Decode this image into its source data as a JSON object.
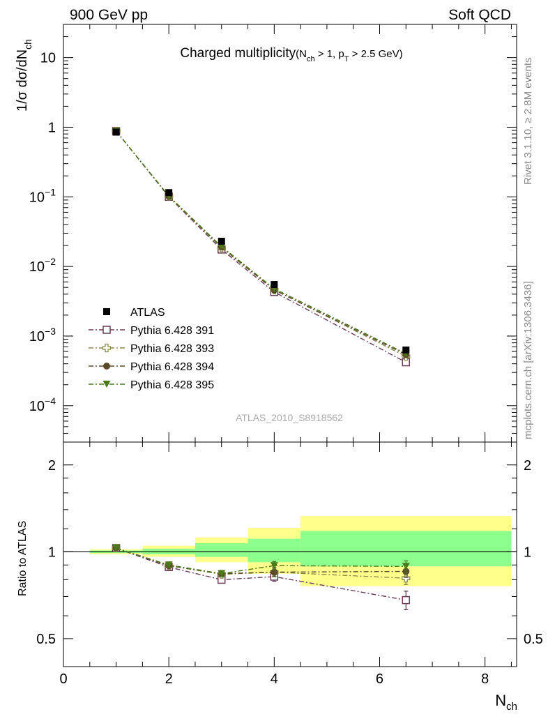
{
  "header": {
    "left": "900 GeV pp",
    "right": "Soft QCD"
  },
  "side_text": {
    "rivet": "Rivet 3.1.10, ≥ 2.8M events",
    "mcplots": "mcplots.cern.ch [arXiv:1306.3436]"
  },
  "watermark": "ATLAS_2010_S8918562",
  "colors": {
    "atlas": "#000000",
    "p391": "#6b3a55",
    "p393": "#8a8a4a",
    "p394": "#5c4a2a",
    "p395": "#4a7a1a",
    "band_outer": "#ffff8c",
    "band_inner": "#8cff8c"
  },
  "chart_data": [
    {
      "type": "scatter",
      "panel": "main",
      "title_main": "Charged multiplicity",
      "title_sub_parts": [
        "(N",
        "ch",
        " > 1, p",
        "T",
        " > 2.5 GeV)"
      ],
      "ylabel_parts": [
        "1/σ dσ/dN",
        "ch"
      ],
      "y_scale": "log",
      "ylim": [
        3e-05,
        30
      ],
      "y_ticks": [
        {
          "value": 10,
          "label": "10"
        },
        {
          "value": 1,
          "label": "1"
        },
        {
          "value": 0.1,
          "base": "10",
          "exp": "−1"
        },
        {
          "value": 0.01,
          "base": "10",
          "exp": "−2"
        },
        {
          "value": 0.001,
          "base": "10",
          "exp": "−3"
        },
        {
          "value": 0.0001,
          "base": "10",
          "exp": "−4"
        }
      ],
      "legend_position": "lower-left",
      "x": [
        1,
        2,
        3,
        4,
        6.5
      ],
      "series": [
        {
          "name": "ATLAS",
          "marker": "square-filled",
          "values": [
            0.85,
            0.115,
            0.023,
            0.0055,
            0.00063
          ]
        },
        {
          "name": "Pythia 6.428 391",
          "marker": "square-open",
          "values": [
            0.88,
            0.1,
            0.0175,
            0.0043,
            0.00042
          ]
        },
        {
          "name": "Pythia 6.428 393",
          "marker": "cross-open",
          "values": [
            0.88,
            0.102,
            0.0185,
            0.0046,
            0.00051
          ]
        },
        {
          "name": "Pythia 6.428 394",
          "marker": "circle-filled",
          "values": [
            0.88,
            0.102,
            0.019,
            0.0046,
            0.00054
          ]
        },
        {
          "name": "Pythia 6.428 395",
          "marker": "triangle-down-filled",
          "values": [
            0.88,
            0.103,
            0.0193,
            0.0048,
            0.00056
          ]
        }
      ]
    },
    {
      "type": "scatter",
      "panel": "ratio",
      "ylabel": "Ratio to ATLAS",
      "y_scale": "log",
      "ylim": [
        0.4,
        2.4
      ],
      "y_ticks": [
        {
          "value": 2,
          "label": "2"
        },
        {
          "value": 1,
          "label": "1"
        },
        {
          "value": 0.5,
          "label": "0.5"
        }
      ],
      "xlabel_parts": [
        "N",
        "ch"
      ],
      "xlim": [
        0,
        8.6
      ],
      "x_ticks": [
        0,
        2,
        4,
        6,
        8
      ],
      "bands": [
        {
          "x0": 0.5,
          "x1": 1.5,
          "outer": [
            0.98,
            1.02
          ],
          "inner": [
            0.99,
            1.01
          ]
        },
        {
          "x0": 1.5,
          "x1": 2.5,
          "outer": [
            0.96,
            1.05
          ],
          "inner": [
            0.98,
            1.025
          ]
        },
        {
          "x0": 2.5,
          "x1": 3.5,
          "outer": [
            0.92,
            1.12
          ],
          "inner": [
            0.96,
            1.07
          ]
        },
        {
          "x0": 3.5,
          "x1": 4.5,
          "outer": [
            0.84,
            1.21
          ],
          "inner": [
            0.92,
            1.11
          ]
        },
        {
          "x0": 4.5,
          "x1": 8.5,
          "outer": [
            0.76,
            1.33
          ],
          "inner": [
            0.89,
            1.18
          ]
        }
      ],
      "x": [
        1,
        2,
        3,
        4,
        6.5
      ],
      "series": [
        {
          "name": "Pythia 6.428 391",
          "marker": "square-open",
          "values": [
            1.03,
            0.885,
            0.8,
            0.82,
            0.68
          ],
          "errors": [
            0.005,
            0.015,
            0.02,
            0.03,
            0.05
          ]
        },
        {
          "name": "Pythia 6.428 393",
          "marker": "cross-open",
          "values": [
            1.03,
            0.895,
            0.835,
            0.85,
            0.81
          ],
          "errors": [
            0.005,
            0.015,
            0.02,
            0.03,
            0.04
          ]
        },
        {
          "name": "Pythia 6.428 394",
          "marker": "circle-filled",
          "values": [
            1.03,
            0.895,
            0.84,
            0.85,
            0.855
          ],
          "errors": [
            0.005,
            0.015,
            0.02,
            0.03,
            0.04
          ]
        },
        {
          "name": "Pythia 6.428 395",
          "marker": "triangle-down-filled",
          "values": [
            1.03,
            0.9,
            0.84,
            0.895,
            0.89
          ],
          "errors": [
            0.005,
            0.015,
            0.02,
            0.03,
            0.04
          ]
        }
      ]
    }
  ]
}
